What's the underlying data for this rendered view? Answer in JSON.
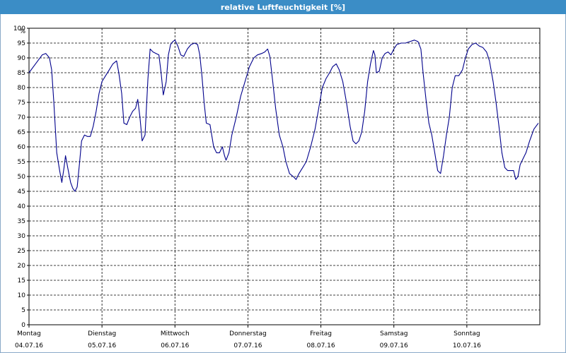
{
  "chart_data": {
    "type": "line",
    "title": "relative Luftfeuchtigkeit [%]",
    "ylabel": "%",
    "xlabel": "",
    "ylim": [
      0,
      100
    ],
    "yticks": [
      0,
      5,
      10,
      15,
      20,
      25,
      30,
      35,
      40,
      45,
      50,
      55,
      60,
      65,
      70,
      75,
      80,
      85,
      90,
      95,
      100
    ],
    "xlim": [
      0,
      7
    ],
    "x_unit": "days",
    "day_ticks": [
      {
        "day": "Montag",
        "date": "04.07.16"
      },
      {
        "day": "Dienstag",
        "date": "05.07.16"
      },
      {
        "day": "Mittwoch",
        "date": "06.07.16"
      },
      {
        "day": "Donnerstag",
        "date": "07.07.16"
      },
      {
        "day": "Freitag",
        "date": "08.07.16"
      },
      {
        "day": "Samstag",
        "date": "09.07.16"
      },
      {
        "day": "Sonntag",
        "date": "10.07.16"
      }
    ],
    "grid": true,
    "line_color": "#00008b",
    "series": [
      {
        "points": [
          [
            0.0,
            85
          ],
          [
            0.06,
            87
          ],
          [
            0.12,
            89
          ],
          [
            0.18,
            91
          ],
          [
            0.23,
            91.5
          ],
          [
            0.28,
            90
          ],
          [
            0.31,
            86
          ],
          [
            0.34,
            75
          ],
          [
            0.38,
            58
          ],
          [
            0.42,
            52
          ],
          [
            0.45,
            48
          ],
          [
            0.48,
            53
          ],
          [
            0.5,
            57
          ],
          [
            0.53,
            53
          ],
          [
            0.57,
            48
          ],
          [
            0.6,
            46
          ],
          [
            0.63,
            45
          ],
          [
            0.66,
            46.5
          ],
          [
            0.69,
            54
          ],
          [
            0.72,
            62
          ],
          [
            0.76,
            64
          ],
          [
            0.8,
            63.5
          ],
          [
            0.84,
            63.5
          ],
          [
            0.88,
            67
          ],
          [
            0.92,
            72
          ],
          [
            0.96,
            78
          ],
          [
            1.0,
            82
          ],
          [
            1.05,
            84
          ],
          [
            1.1,
            86
          ],
          [
            1.15,
            88
          ],
          [
            1.2,
            89
          ],
          [
            1.23,
            85
          ],
          [
            1.27,
            78
          ],
          [
            1.3,
            68
          ],
          [
            1.34,
            67.5
          ],
          [
            1.38,
            70
          ],
          [
            1.42,
            72
          ],
          [
            1.46,
            73
          ],
          [
            1.49,
            76
          ],
          [
            1.52,
            70
          ],
          [
            1.55,
            62
          ],
          [
            1.59,
            64
          ],
          [
            1.63,
            83
          ],
          [
            1.66,
            93
          ],
          [
            1.7,
            92
          ],
          [
            1.74,
            91.5
          ],
          [
            1.78,
            91
          ],
          [
            1.81,
            85
          ],
          [
            1.84,
            77.5
          ],
          [
            1.88,
            82
          ],
          [
            1.91,
            91
          ],
          [
            1.94,
            94.5
          ],
          [
            1.97,
            95.5
          ],
          [
            2.0,
            96
          ],
          [
            2.04,
            94
          ],
          [
            2.08,
            91
          ],
          [
            2.12,
            90.5
          ],
          [
            2.17,
            93
          ],
          [
            2.22,
            94.5
          ],
          [
            2.27,
            95
          ],
          [
            2.31,
            94.5
          ],
          [
            2.34,
            91
          ],
          [
            2.37,
            84
          ],
          [
            2.4,
            75
          ],
          [
            2.43,
            68
          ],
          [
            2.48,
            67.5
          ],
          [
            2.53,
            60
          ],
          [
            2.57,
            58
          ],
          [
            2.61,
            58
          ],
          [
            2.65,
            60
          ],
          [
            2.68,
            57
          ],
          [
            2.7,
            55.5
          ],
          [
            2.74,
            58
          ],
          [
            2.78,
            64
          ],
          [
            2.84,
            70
          ],
          [
            2.9,
            77
          ],
          [
            2.96,
            82
          ],
          [
            3.02,
            87
          ],
          [
            3.08,
            90
          ],
          [
            3.13,
            91
          ],
          [
            3.19,
            91.5
          ],
          [
            3.23,
            92
          ],
          [
            3.27,
            93
          ],
          [
            3.3,
            90.5
          ],
          [
            3.34,
            82
          ],
          [
            3.38,
            73
          ],
          [
            3.43,
            64
          ],
          [
            3.48,
            60
          ],
          [
            3.52,
            55
          ],
          [
            3.57,
            51
          ],
          [
            3.62,
            50
          ],
          [
            3.66,
            49
          ],
          [
            3.7,
            51
          ],
          [
            3.75,
            53
          ],
          [
            3.8,
            55
          ],
          [
            3.86,
            60
          ],
          [
            3.92,
            66
          ],
          [
            3.97,
            73
          ],
          [
            4.02,
            80
          ],
          [
            4.07,
            83
          ],
          [
            4.12,
            85
          ],
          [
            4.16,
            87
          ],
          [
            4.21,
            88
          ],
          [
            4.25,
            86
          ],
          [
            4.3,
            82
          ],
          [
            4.35,
            75
          ],
          [
            4.4,
            67
          ],
          [
            4.44,
            62
          ],
          [
            4.48,
            61
          ],
          [
            4.52,
            62
          ],
          [
            4.56,
            65
          ],
          [
            4.6,
            72
          ],
          [
            4.64,
            82
          ],
          [
            4.68,
            88
          ],
          [
            4.72,
            92.5
          ],
          [
            4.74,
            91
          ],
          [
            4.76,
            85
          ],
          [
            4.8,
            85.5
          ],
          [
            4.84,
            90
          ],
          [
            4.88,
            91.5
          ],
          [
            4.92,
            92
          ],
          [
            4.96,
            91
          ],
          [
            5.0,
            93
          ],
          [
            5.04,
            94.5
          ],
          [
            5.1,
            95
          ],
          [
            5.16,
            95
          ],
          [
            5.22,
            95.5
          ],
          [
            5.28,
            96
          ],
          [
            5.33,
            95.5
          ],
          [
            5.37,
            93
          ],
          [
            5.4,
            85
          ],
          [
            5.44,
            76
          ],
          [
            5.48,
            68
          ],
          [
            5.52,
            64
          ],
          [
            5.56,
            58
          ],
          [
            5.6,
            52
          ],
          [
            5.64,
            51
          ],
          [
            5.68,
            57
          ],
          [
            5.72,
            64
          ],
          [
            5.76,
            70
          ],
          [
            5.8,
            80
          ],
          [
            5.84,
            84
          ],
          [
            5.89,
            84
          ],
          [
            5.94,
            86
          ],
          [
            5.98,
            90
          ],
          [
            6.02,
            93
          ],
          [
            6.07,
            94.5
          ],
          [
            6.12,
            95
          ],
          [
            6.17,
            94
          ],
          [
            6.22,
            93.5
          ],
          [
            6.27,
            92
          ],
          [
            6.31,
            89
          ],
          [
            6.36,
            82
          ],
          [
            6.4,
            75
          ],
          [
            6.44,
            67
          ],
          [
            6.48,
            58
          ],
          [
            6.52,
            53
          ],
          [
            6.56,
            52
          ],
          [
            6.6,
            52
          ],
          [
            6.64,
            52
          ],
          [
            6.67,
            49
          ],
          [
            6.7,
            50
          ],
          [
            6.73,
            54
          ],
          [
            6.77,
            56
          ],
          [
            6.81,
            58
          ],
          [
            6.86,
            62
          ],
          [
            6.92,
            66
          ],
          [
            6.98,
            68
          ]
        ]
      }
    ]
  }
}
